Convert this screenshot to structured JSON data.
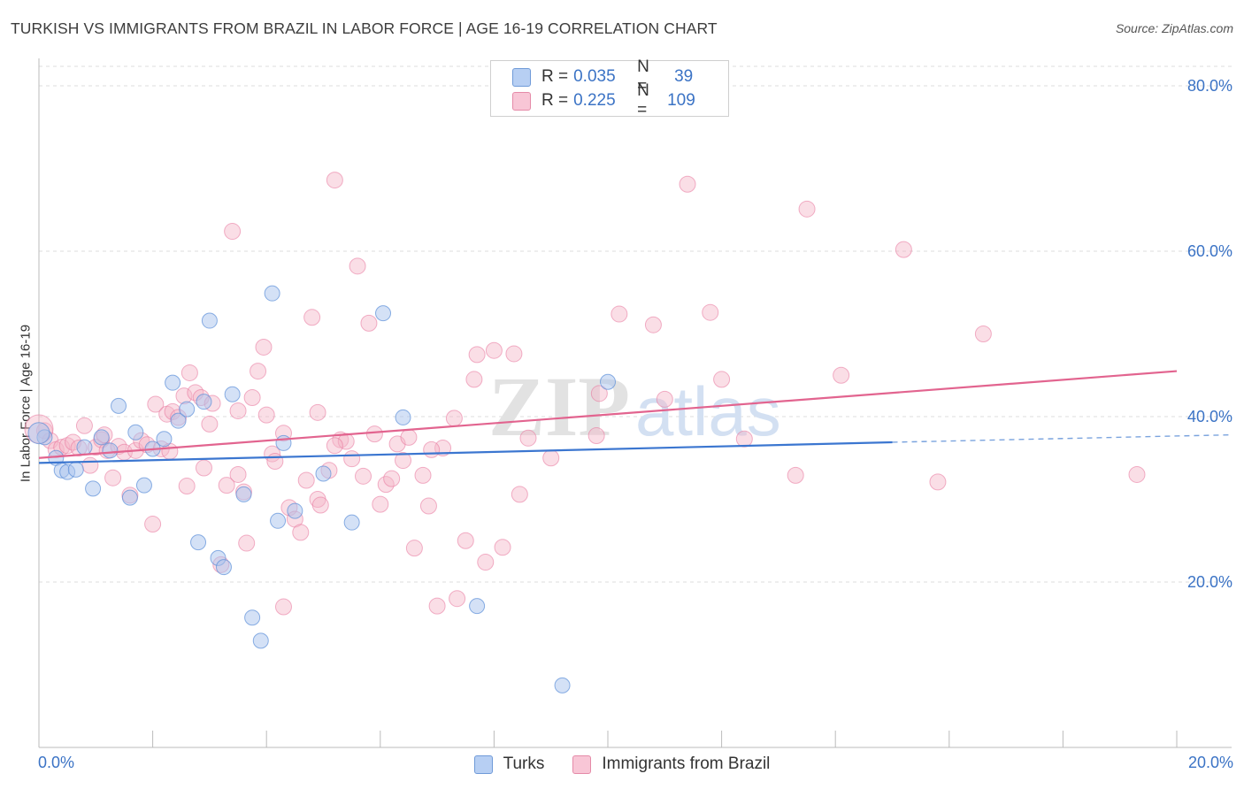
{
  "title": "TURKISH VS IMMIGRANTS FROM BRAZIL IN LABOR FORCE | AGE 16-19 CORRELATION CHART",
  "source": "Source: ZipAtlas.com",
  "colors": {
    "blue": "#5b8fd9",
    "blue_fill": "#a9c4ee",
    "pink": "#e7739a",
    "pink_fill": "#f4b5c8",
    "axis_text": "#3b73c5",
    "grid": "#dddddd"
  },
  "legend": {
    "rows": [
      {
        "r_label": "R =",
        "r_value": "0.035",
        "n_label": "N =",
        "n_value": "39"
      },
      {
        "r_label": "R =",
        "r_value": "0.225",
        "n_label": "N =",
        "n_value": "109"
      }
    ]
  },
  "bottom_legend": {
    "turks": "Turks",
    "brazil": "Immigrants from Brazil"
  },
  "watermark": {
    "zip": "ZIP",
    "atlas": "atlas"
  },
  "chart_data": {
    "type": "scatter",
    "title": "TURKISH VS IMMIGRANTS FROM BRAZIL IN LABOR FORCE | AGE 16-19 CORRELATION CHART",
    "ylabel": "In Labor Force | Age 16-19",
    "xlabel": "",
    "xlim": [
      0,
      20
    ],
    "ylim": [
      0,
      80
    ],
    "x_tick_labels": [
      "0.0%",
      "20.0%"
    ],
    "y_tick_labels": [
      "20.0%",
      "40.0%",
      "60.0%",
      "80.0%"
    ],
    "y_ticks": [
      20,
      40,
      60,
      80
    ],
    "grid": true,
    "legend_position": "top-center",
    "series": [
      {
        "name": "Turks",
        "color": "#5b8fd9",
        "trend": {
          "x0": 0,
          "y0": 34.4,
          "x1": 15.0,
          "y1": 36.9,
          "dash_to_x": 20,
          "dash_to_y": 37.8
        },
        "points": [
          [
            0.1,
            37.5
          ],
          [
            0.3,
            35.0
          ],
          [
            0.4,
            33.5
          ],
          [
            0.5,
            33.3
          ],
          [
            0.65,
            33.6
          ],
          [
            0.8,
            36.3
          ],
          [
            0.95,
            31.3
          ],
          [
            1.1,
            37.5
          ],
          [
            1.25,
            35.9
          ],
          [
            1.4,
            41.3
          ],
          [
            1.6,
            30.2
          ],
          [
            1.7,
            38.1
          ],
          [
            1.85,
            31.7
          ],
          [
            2.0,
            36.1
          ],
          [
            2.2,
            37.3
          ],
          [
            2.35,
            44.1
          ],
          [
            2.45,
            39.5
          ],
          [
            2.6,
            40.9
          ],
          [
            2.8,
            24.8
          ],
          [
            2.9,
            41.8
          ],
          [
            3.0,
            51.6
          ],
          [
            3.15,
            22.9
          ],
          [
            3.25,
            21.8
          ],
          [
            3.4,
            42.7
          ],
          [
            3.6,
            30.6
          ],
          [
            3.75,
            15.7
          ],
          [
            3.9,
            12.9
          ],
          [
            4.1,
            54.9
          ],
          [
            4.2,
            27.4
          ],
          [
            4.3,
            36.8
          ],
          [
            4.5,
            28.6
          ],
          [
            5.0,
            33.1
          ],
          [
            5.5,
            27.2
          ],
          [
            6.05,
            52.5
          ],
          [
            6.4,
            39.9
          ],
          [
            7.7,
            17.1
          ],
          [
            9.2,
            7.5
          ],
          [
            10.0,
            44.2
          ],
          [
            0.0,
            38.0
          ]
        ]
      },
      {
        "name": "Immigrants from Brazil",
        "color": "#e7739a",
        "trend": {
          "x0": 0,
          "y0": 35.0,
          "x1": 20,
          "y1": 45.5
        },
        "points": [
          [
            0.1,
            38.3
          ],
          [
            0.2,
            37.1
          ],
          [
            0.3,
            36.0
          ],
          [
            0.4,
            36.3
          ],
          [
            0.5,
            36.5
          ],
          [
            0.6,
            36.9
          ],
          [
            0.7,
            36.2
          ],
          [
            0.8,
            38.9
          ],
          [
            0.9,
            34.1
          ],
          [
            1.0,
            36.3
          ],
          [
            1.1,
            37.2
          ],
          [
            1.2,
            35.9
          ],
          [
            1.3,
            32.6
          ],
          [
            1.4,
            36.4
          ],
          [
            1.5,
            35.7
          ],
          [
            1.6,
            30.5
          ],
          [
            1.7,
            35.9
          ],
          [
            1.8,
            37.1
          ],
          [
            1.9,
            36.6
          ],
          [
            2.0,
            27.0
          ],
          [
            2.05,
            41.5
          ],
          [
            2.15,
            36.1
          ],
          [
            2.25,
            40.3
          ],
          [
            2.35,
            40.6
          ],
          [
            2.45,
            39.9
          ],
          [
            2.55,
            42.5
          ],
          [
            2.6,
            31.6
          ],
          [
            2.65,
            45.3
          ],
          [
            2.75,
            42.9
          ],
          [
            2.85,
            42.3
          ],
          [
            2.9,
            33.8
          ],
          [
            3.0,
            39.1
          ],
          [
            3.05,
            41.6
          ],
          [
            3.2,
            22.1
          ],
          [
            3.3,
            31.7
          ],
          [
            3.4,
            62.4
          ],
          [
            3.5,
            40.7
          ],
          [
            3.6,
            30.9
          ],
          [
            3.65,
            24.7
          ],
          [
            3.75,
            42.3
          ],
          [
            3.85,
            45.5
          ],
          [
            3.95,
            48.4
          ],
          [
            4.0,
            40.2
          ],
          [
            4.1,
            35.5
          ],
          [
            4.15,
            34.6
          ],
          [
            4.3,
            17.0
          ],
          [
            4.3,
            38.0
          ],
          [
            4.4,
            29.0
          ],
          [
            4.5,
            27.6
          ],
          [
            4.6,
            26.0
          ],
          [
            4.7,
            32.3
          ],
          [
            4.8,
            52.0
          ],
          [
            4.9,
            30.0
          ],
          [
            4.95,
            29.3
          ],
          [
            5.1,
            33.5
          ],
          [
            5.2,
            68.6
          ],
          [
            5.3,
            37.2
          ],
          [
            5.4,
            37.0
          ],
          [
            5.5,
            34.9
          ],
          [
            5.6,
            58.2
          ],
          [
            5.7,
            32.8
          ],
          [
            5.8,
            51.3
          ],
          [
            5.9,
            37.9
          ],
          [
            6.0,
            29.4
          ],
          [
            6.1,
            31.8
          ],
          [
            6.2,
            32.5
          ],
          [
            6.3,
            36.7
          ],
          [
            6.4,
            34.7
          ],
          [
            6.5,
            37.5
          ],
          [
            6.6,
            24.1
          ],
          [
            6.75,
            32.9
          ],
          [
            6.85,
            29.2
          ],
          [
            7.0,
            17.1
          ],
          [
            7.1,
            36.2
          ],
          [
            7.35,
            18.0
          ],
          [
            7.5,
            25.0
          ],
          [
            7.65,
            44.5
          ],
          [
            7.7,
            47.5
          ],
          [
            7.85,
            22.4
          ],
          [
            8.0,
            48.0
          ],
          [
            8.15,
            24.2
          ],
          [
            8.35,
            47.6
          ],
          [
            8.45,
            30.6
          ],
          [
            8.6,
            37.4
          ],
          [
            9.8,
            37.7
          ],
          [
            9.85,
            42.8
          ],
          [
            10.2,
            52.4
          ],
          [
            10.8,
            51.1
          ],
          [
            11.0,
            42.1
          ],
          [
            11.4,
            68.1
          ],
          [
            11.8,
            52.6
          ],
          [
            12.0,
            44.5
          ],
          [
            12.4,
            37.3
          ],
          [
            13.3,
            32.9
          ],
          [
            13.5,
            65.1
          ],
          [
            14.1,
            45.0
          ],
          [
            15.2,
            60.2
          ],
          [
            15.8,
            32.1
          ],
          [
            16.6,
            50.0
          ],
          [
            19.3,
            33.0
          ],
          [
            0.0,
            38.5
          ],
          [
            3.5,
            33.0
          ],
          [
            5.2,
            36.5
          ],
          [
            6.9,
            36.0
          ],
          [
            9.0,
            35.0
          ],
          [
            4.9,
            40.5
          ],
          [
            2.3,
            35.8
          ],
          [
            7.3,
            39.8
          ],
          [
            1.15,
            37.8
          ]
        ]
      }
    ]
  }
}
